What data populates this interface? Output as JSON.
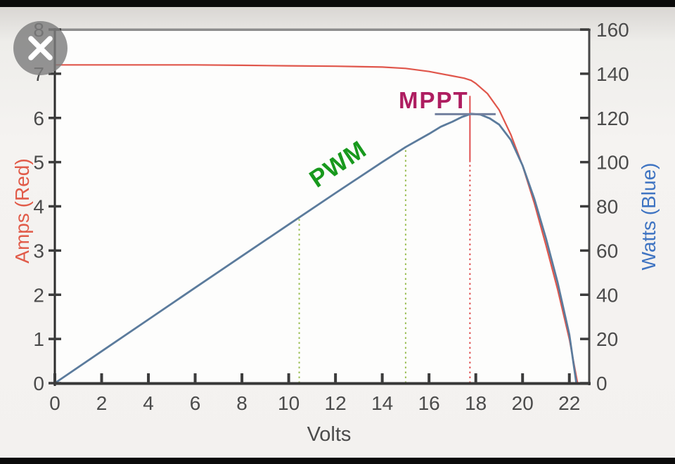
{
  "overlay": {
    "close_tooltip": "Close"
  },
  "labels": {
    "volts": "Volts",
    "amps": "Amps (Red)",
    "watts": "Watts (Blue)",
    "pwm": "PWM",
    "mppt": "MPPT"
  },
  "chart_data": {
    "type": "line",
    "title": "",
    "xlabel": "Volts",
    "ylabel_left": "Amps (Red)",
    "ylabel_right": "Watts (Blue)",
    "xlim": [
      0,
      22.85
    ],
    "amps_lim": [
      0,
      8
    ],
    "watts_lim": [
      0,
      160
    ],
    "x_ticks": [
      0,
      2,
      4,
      6,
      8,
      10,
      12,
      14,
      16,
      18,
      20,
      22
    ],
    "left_ticks": [
      0,
      1,
      2,
      3,
      4,
      5,
      6,
      7,
      8
    ],
    "right_ticks": [
      0,
      20,
      40,
      60,
      80,
      100,
      120,
      140,
      160
    ],
    "grid": false,
    "legend": "none",
    "series": [
      {
        "name": "Current (Amps, red)",
        "axis": "amps",
        "color": "#e0564b",
        "width": 2.2,
        "points": [
          [
            0,
            7.2
          ],
          [
            2,
            7.2
          ],
          [
            4,
            7.2
          ],
          [
            6,
            7.2
          ],
          [
            8,
            7.19
          ],
          [
            10,
            7.18
          ],
          [
            12,
            7.17
          ],
          [
            14,
            7.15
          ],
          [
            15,
            7.12
          ],
          [
            16,
            7.05
          ],
          [
            17,
            6.95
          ],
          [
            17.5,
            6.9
          ],
          [
            17.8,
            6.85
          ],
          [
            18,
            6.78
          ],
          [
            18.5,
            6.55
          ],
          [
            19,
            6.18
          ],
          [
            19.5,
            5.62
          ],
          [
            20,
            4.92
          ],
          [
            20.5,
            4.08
          ],
          [
            21,
            3.12
          ],
          [
            21.5,
            2.12
          ],
          [
            22,
            1.0
          ],
          [
            22.35,
            0
          ]
        ]
      },
      {
        "name": "Power (Watts, blue)",
        "axis": "watts",
        "color": "#5b7b9c",
        "width": 2.8,
        "points": [
          [
            0,
            0
          ],
          [
            2,
            14.4
          ],
          [
            4,
            28.8
          ],
          [
            6,
            43.2
          ],
          [
            8,
            57.5
          ],
          [
            10,
            71.8
          ],
          [
            12,
            86
          ],
          [
            14,
            100
          ],
          [
            15,
            106.8
          ],
          [
            16,
            112.8
          ],
          [
            16.5,
            116
          ],
          [
            17,
            118.3
          ],
          [
            17.4,
            120.4
          ],
          [
            17.8,
            121.9
          ],
          [
            18.2,
            121.5
          ],
          [
            18.6,
            119.8
          ],
          [
            19,
            117
          ],
          [
            19.5,
            110
          ],
          [
            20,
            98.5
          ],
          [
            20.5,
            83.5
          ],
          [
            21,
            65.5
          ],
          [
            21.5,
            45.5
          ],
          [
            22,
            22
          ],
          [
            22.3,
            0
          ]
        ]
      }
    ],
    "guides": [
      {
        "label": "PWM operating voltage 1",
        "x": 10.45,
        "top_watts": 74.8,
        "color": "#9cbf55",
        "dash": "2.5 4.5",
        "width": 2
      },
      {
        "label": "PWM operating voltage 2",
        "x": 15.0,
        "top_watts": 106.5,
        "color": "#9cbf55",
        "dash": "2.5 4.5",
        "width": 2
      },
      {
        "label": "MPPT voltage",
        "x": 17.75,
        "top_watts": 100,
        "color": "#df4f4f",
        "dash": "2.5 4.5",
        "width": 2,
        "solid_from_watts": 100,
        "solid_to_watts": 130
      }
    ],
    "mppt_peak_line": {
      "watts": 121.7,
      "v_from": 16.25,
      "v_to": 18.85,
      "color": "#72809e",
      "width": 3
    },
    "annotations": [
      {
        "text": "PWM",
        "color": "#18991d",
        "at_volts": 12.1,
        "at_watts": 99
      },
      {
        "text": "MPPT",
        "color": "#ae1d60",
        "at_volts": 14.8,
        "at_watts": 129
      }
    ]
  }
}
